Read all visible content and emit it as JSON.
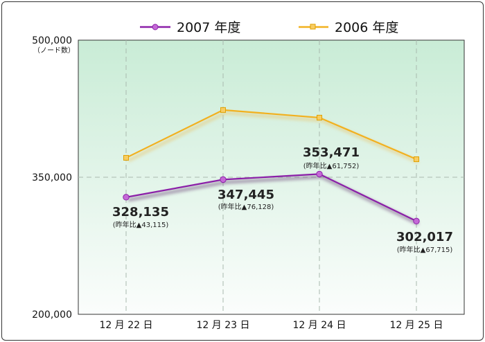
{
  "chart_data": {
    "type": "line",
    "categories": [
      "12 月 22 日",
      "12 月 23 日",
      "12 月 24 日",
      "12 月 25 日"
    ],
    "series": [
      {
        "name": "2007 年度",
        "values": [
          328135,
          347445,
          353471,
          302017
        ],
        "color": "#8b1fa8",
        "labels": [
          "328,135",
          "347,445",
          "353,471",
          "302,017"
        ],
        "sublabels": [
          "(昨年比▲43,115)",
          "(昨年比▲76,128)",
          "(昨年比▲61,752)",
          "(昨年比▲67,715)"
        ]
      },
      {
        "name": "2006 年度",
        "values": [
          371250,
          423573,
          415223,
          369732
        ],
        "color": "#f2b01e"
      }
    ],
    "yticks": [
      "500,000",
      "350,000",
      "200,000"
    ],
    "ytick_values": [
      500000,
      350000,
      200000
    ],
    "yunit": "（ノード数）",
    "ylim": [
      200000,
      500000
    ],
    "grid": true,
    "legend_position": "top"
  }
}
